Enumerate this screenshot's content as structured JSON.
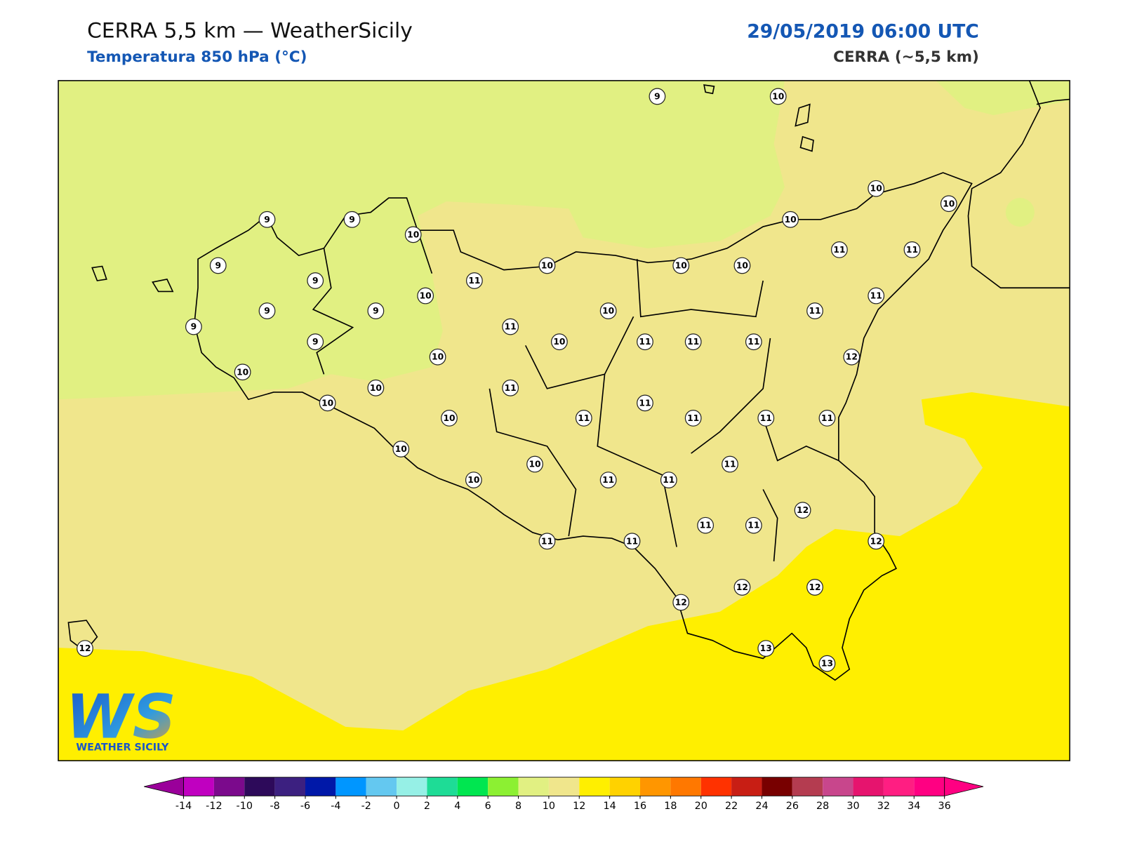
{
  "header": {
    "title": "CERRA 5,5 km — WeatherSicily",
    "subtitle": "Temperatura 850 hPa (°C)",
    "datetime": "29/05/2019 06:00 UTC",
    "model": "CERRA (~5,5 km)"
  },
  "map": {
    "stations": [
      9,
      10,
      9,
      9,
      10,
      10,
      10,
      10,
      9,
      9,
      11,
      10,
      10,
      10,
      11,
      11,
      9,
      9,
      10,
      10,
      11,
      11,
      9,
      9,
      11,
      10,
      11,
      11,
      11,
      10,
      12,
      10,
      10,
      11,
      10,
      11,
      10,
      11,
      11,
      11,
      11,
      10,
      10,
      11,
      10,
      11,
      11,
      12,
      11,
      11,
      11,
      11,
      12,
      12,
      12,
      12,
      12,
      13,
      13
    ]
  },
  "logo": {
    "mark": "WS",
    "text": "WEATHER SICILY"
  },
  "colorbar": {
    "ticks": [
      -14,
      -12,
      -10,
      -8,
      -6,
      -4,
      -2,
      0,
      2,
      4,
      6,
      8,
      10,
      12,
      14,
      16,
      18,
      20,
      22,
      24,
      26,
      28,
      30,
      32,
      34,
      36
    ],
    "colors": [
      "#c000c0",
      "#7b0a8c",
      "#2d0a5a",
      "#3c2080",
      "#0018a8",
      "#0096ff",
      "#64c8f0",
      "#96f0e6",
      "#1edc96",
      "#00e650",
      "#8cf032",
      "#e1f082",
      "#f0e68c",
      "#ffef00",
      "#ffd200",
      "#ff9600",
      "#ff7800",
      "#ff3200",
      "#c81e14",
      "#780000",
      "#b43c50",
      "#c8468c",
      "#e6146e",
      "#ff1e82",
      "#ff0082"
    ],
    "extend_low": "#9a009a",
    "extend_high": "#ff0082"
  }
}
